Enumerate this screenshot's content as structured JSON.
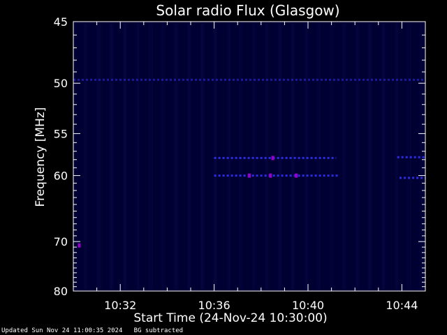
{
  "chart_data": {
    "type": "heatmap",
    "title": "Solar radio Flux (Glasgow)",
    "xlabel": "Start Time (24-Nov-24 10:30:00)",
    "ylabel": "Frequency [MHz]",
    "x_ticks": [
      "10:32",
      "10:36",
      "10:40",
      "10:44"
    ],
    "x_tick_minutes": [
      2,
      6,
      10,
      14
    ],
    "xlim_minutes": [
      0,
      15
    ],
    "y_ticks": [
      45,
      50,
      55,
      60,
      70,
      80
    ],
    "ylim": [
      45,
      80
    ],
    "y_scale": "reciprocal",
    "grid": false,
    "background_color": "#000000",
    "foreground_color": "#ffffff",
    "field_color": "#000033",
    "emission_color": "#3333ff",
    "hot_color": "#9900cc",
    "emission_bands": [
      {
        "freq": 49.7,
        "t_start": 0.0,
        "t_end": 15.0,
        "level": 0.5
      },
      {
        "freq": 57.8,
        "t_start": 6.0,
        "t_end": 11.2,
        "level": 0.85
      },
      {
        "freq": 57.7,
        "t_start": 13.8,
        "t_end": 15.0,
        "level": 0.85
      },
      {
        "freq": 60.0,
        "t_start": 6.0,
        "t_end": 11.3,
        "level": 0.85
      },
      {
        "freq": 60.3,
        "t_start": 13.9,
        "t_end": 15.0,
        "level": 0.85
      }
    ],
    "hot_spots": [
      {
        "freq": 70.7,
        "t": 0.25
      },
      {
        "freq": 60.0,
        "t": 7.5
      },
      {
        "freq": 60.0,
        "t": 8.4
      },
      {
        "freq": 57.8,
        "t": 8.5
      },
      {
        "freq": 60.0,
        "t": 9.5
      }
    ]
  },
  "footer": {
    "updated": "Updated Sun Nov 24 11:00:35 2024",
    "mode": "BG subtracted"
  }
}
